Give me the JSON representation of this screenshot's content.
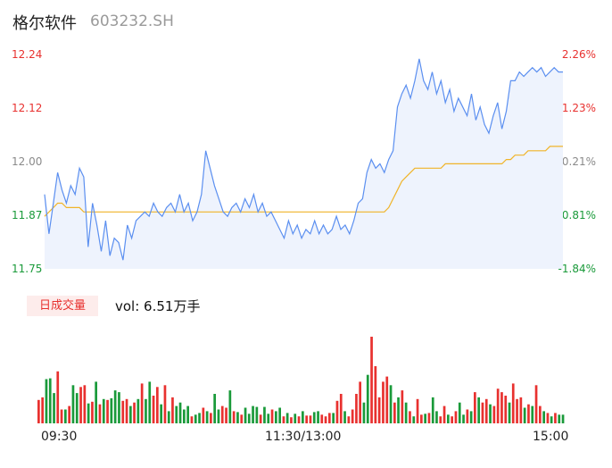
{
  "header": {
    "name": "格尔软件",
    "code": "603232.SH"
  },
  "price_axis": [
    "12.24",
    "12.12",
    "12.00",
    "11.87",
    "11.75"
  ],
  "pct_axis": [
    "2.26%",
    "1.23%",
    "0.21%",
    "-0.81%",
    "-1.84%"
  ],
  "volume": {
    "badge": "日成交量",
    "text": "vol: 6.51万手"
  },
  "time_axis": [
    "09:30",
    "11:30/13:00",
    "15:00"
  ],
  "colors": {
    "price": "#5b8ff0",
    "avg": "#f0b429",
    "up": "#e8312f",
    "down": "#1a9a3a",
    "fill": "#eef3fd"
  },
  "chart_data": [
    {
      "type": "line",
      "title": "",
      "ylim": [
        11.75,
        12.24
      ],
      "y2lim": [
        -1.84,
        2.26
      ],
      "reference": 11.975,
      "x_ticks": [
        "09:30",
        "11:30/13:00",
        "15:00"
      ],
      "series": [
        {
          "values": [
            11.92,
            11.83,
            11.9,
            11.97,
            11.93,
            11.9,
            11.94,
            11.92,
            11.98,
            11.96,
            11.8,
            11.9,
            11.85,
            11.79,
            11.86,
            11.78,
            11.82,
            11.81,
            11.77,
            11.85,
            11.82,
            11.86,
            11.87,
            11.88,
            11.87,
            11.9,
            11.88,
            11.87,
            11.89,
            11.9,
            11.88,
            11.92,
            11.88,
            11.9,
            11.86,
            11.88,
            11.92,
            12.02,
            11.98,
            11.94,
            11.91,
            11.88,
            11.87,
            11.89,
            11.9,
            11.88,
            11.91,
            11.89,
            11.92,
            11.88,
            11.9,
            11.87,
            11.88,
            11.86,
            11.84,
            11.82,
            11.86,
            11.83,
            11.85,
            11.82,
            11.84,
            11.83,
            11.86,
            11.83,
            11.85,
            11.83,
            11.84,
            11.87,
            11.84,
            11.85,
            11.83,
            11.86,
            11.9,
            11.91,
            11.97,
            12.0,
            11.98,
            11.99,
            11.97,
            12.0,
            12.02,
            12.12,
            12.15,
            12.17,
            12.14,
            12.18,
            12.23,
            12.18,
            12.16,
            12.2,
            12.15,
            12.18,
            12.13,
            12.16,
            12.11,
            12.14,
            12.12,
            12.1,
            12.15,
            12.09,
            12.12,
            12.08,
            12.06,
            12.1,
            12.13,
            12.07,
            12.11,
            12.18,
            12.18,
            12.2,
            12.19,
            12.2,
            12.21,
            12.2,
            12.21,
            12.19,
            12.2,
            12.21,
            12.2,
            12.2
          ],
          "avg": [
            11.87,
            11.88,
            11.89,
            11.9,
            11.9,
            11.89,
            11.89,
            11.89,
            11.89,
            11.88,
            11.88,
            11.88,
            11.88,
            11.88,
            11.88,
            11.88,
            11.88,
            11.88,
            11.88,
            11.88,
            11.88,
            11.88,
            11.88,
            11.88,
            11.88,
            11.88,
            11.88,
            11.88,
            11.88,
            11.88,
            11.88,
            11.88,
            11.88,
            11.88,
            11.88,
            11.88,
            11.88,
            11.88,
            11.88,
            11.88,
            11.88,
            11.88,
            11.88,
            11.88,
            11.88,
            11.88,
            11.88,
            11.88,
            11.88,
            11.88,
            11.88,
            11.88,
            11.88,
            11.88,
            11.88,
            11.88,
            11.88,
            11.88,
            11.88,
            11.88,
            11.88,
            11.88,
            11.88,
            11.88,
            11.88,
            11.88,
            11.88,
            11.88,
            11.88,
            11.88,
            11.88,
            11.88,
            11.88,
            11.88,
            11.88,
            11.88,
            11.88,
            11.88,
            11.88,
            11.89,
            11.91,
            11.93,
            11.95,
            11.96,
            11.97,
            11.98,
            11.98,
            11.98,
            11.98,
            11.98,
            11.98,
            11.98,
            11.99,
            11.99,
            11.99,
            11.99,
            11.99,
            11.99,
            11.99,
            11.99,
            11.99,
            11.99,
            11.99,
            11.99,
            11.99,
            11.99,
            12.0,
            12.0,
            12.01,
            12.01,
            12.01,
            12.02,
            12.02,
            12.02,
            12.02,
            12.02,
            12.03,
            12.03,
            12.03,
            12.03
          ]
        }
      ]
    },
    {
      "type": "bar",
      "title": "日成交量",
      "values": [
        27,
        30,
        51,
        52,
        35,
        60,
        16,
        16,
        20,
        44,
        35,
        42,
        44,
        23,
        25,
        48,
        22,
        28,
        27,
        29,
        38,
        36,
        26,
        28,
        20,
        24,
        28,
        46,
        28,
        48,
        32,
        42,
        22,
        44,
        14,
        30,
        20,
        24,
        16,
        20,
        8,
        10,
        12,
        18,
        14,
        12,
        34,
        16,
        20,
        18,
        38,
        14,
        13,
        10,
        18,
        11,
        20,
        19,
        10,
        19,
        11,
        16,
        14,
        18,
        8,
        12,
        7,
        11,
        8,
        14,
        9,
        9,
        13,
        14,
        10,
        8,
        12,
        12,
        26,
        34,
        14,
        8,
        16,
        34,
        48,
        24,
        56,
        100,
        66,
        30,
        48,
        54,
        44,
        24,
        30,
        38,
        24,
        14,
        8,
        28,
        10,
        11,
        12,
        30,
        14,
        8,
        20,
        10,
        8,
        14,
        24,
        10,
        16,
        14,
        36,
        30,
        24,
        28,
        22,
        20,
        40,
        36,
        32,
        24,
        46,
        28,
        30,
        18,
        22,
        20,
        44,
        20,
        14,
        12,
        8,
        12,
        10,
        10
      ],
      "up": [
        true,
        true,
        false,
        false,
        false,
        true,
        true,
        false,
        true,
        false,
        false,
        true,
        true,
        false,
        true,
        false,
        true,
        false,
        true,
        false,
        false,
        false,
        true,
        true,
        false,
        true,
        false,
        true,
        false,
        false,
        true,
        true,
        false,
        true,
        false,
        true,
        false,
        false,
        false,
        false,
        true,
        false,
        false,
        true,
        false,
        true,
        false,
        false,
        true,
        true,
        false,
        true,
        false,
        true,
        false,
        false,
        false,
        false,
        true,
        false,
        false,
        true,
        false,
        false,
        true,
        false,
        true,
        false,
        true,
        false,
        true,
        true,
        false,
        false,
        true,
        true,
        true,
        false,
        true,
        true,
        false,
        true,
        true,
        true,
        true,
        false,
        false,
        true,
        true,
        true,
        true,
        true,
        false,
        true,
        false,
        true,
        false,
        true,
        false,
        true,
        true,
        false,
        true,
        false,
        false,
        true,
        true,
        false,
        true,
        true,
        false,
        false,
        true,
        false,
        true,
        false,
        true,
        true,
        false,
        true,
        true,
        true,
        true,
        false,
        true,
        true,
        true,
        false,
        true,
        false,
        true,
        true,
        false,
        true,
        false,
        true,
        false,
        false
      ],
      "ylim": [
        0,
        100
      ]
    }
  ]
}
